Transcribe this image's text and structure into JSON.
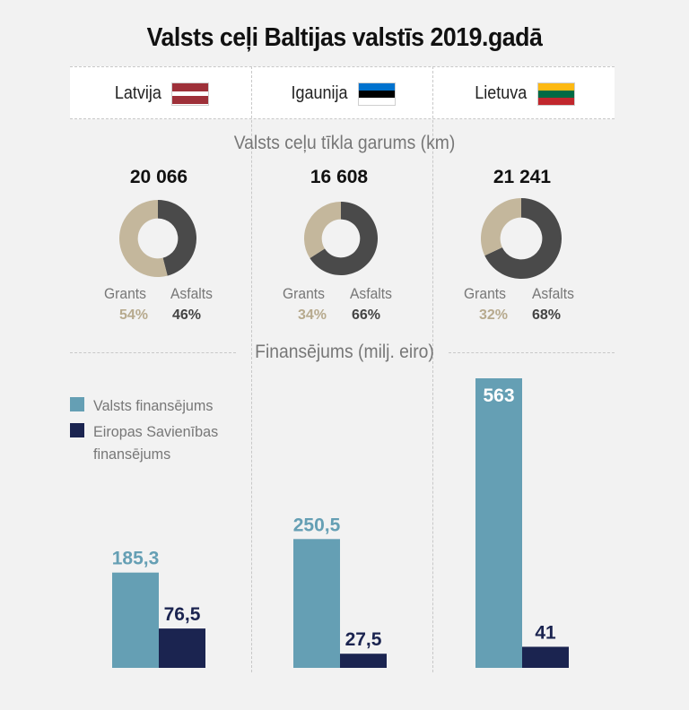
{
  "title": "Valsts ceļi Baltijas valstīs 2019.gadā",
  "countries": [
    {
      "name": "Latvija",
      "flag_colors": [
        "#9e3039",
        "#ffffff",
        "#9e3039"
      ],
      "flag_ratio": [
        2,
        1,
        2
      ]
    },
    {
      "name": "Igaunija",
      "flag_colors": [
        "#0072ce",
        "#000000",
        "#ffffff"
      ],
      "flag_ratio": [
        1,
        1,
        1
      ]
    },
    {
      "name": "Lietuva",
      "flag_colors": [
        "#fdb913",
        "#006a44",
        "#c1272d"
      ],
      "flag_ratio": [
        1,
        1,
        1
      ]
    }
  ],
  "section_length_title": "Valsts ceļu tīkla garums (km)",
  "section_funding_title": "Finansējums (milj. eiro)",
  "colors": {
    "grants": "#c4b79c",
    "asfalts": "#4a4a4a",
    "valsts": "#659fb4",
    "es": "#1b2450",
    "grants_text": "#b7aa8e",
    "asfalts_text": "#444444"
  },
  "chart_data": [
    {
      "type": "pie",
      "title": "Valsts ceļu tīkla garums (km)",
      "groups": [
        {
          "country": "Latvija",
          "total_label": "20 066",
          "slices": [
            {
              "label": "Grants",
              "value": 54,
              "value_label": "54%"
            },
            {
              "label": "Asfalts",
              "value": 46,
              "value_label": "46%"
            }
          ]
        },
        {
          "country": "Igaunija",
          "total_label": "16 608",
          "slices": [
            {
              "label": "Grants",
              "value": 34,
              "value_label": "34%"
            },
            {
              "label": "Asfalts",
              "value": 66,
              "value_label": "66%"
            }
          ]
        },
        {
          "country": "Lietuva",
          "total_label": "21 241",
          "slices": [
            {
              "label": "Grants",
              "value": 32,
              "value_label": "32%"
            },
            {
              "label": "Asfalts",
              "value": 68,
              "value_label": "68%"
            }
          ]
        }
      ]
    },
    {
      "type": "bar",
      "title": "Finansējums (milj. eiro)",
      "categories": [
        "Latvija",
        "Igaunija",
        "Lietuva"
      ],
      "series": [
        {
          "name": "Valsts finansējums",
          "values": [
            185.3,
            250.5,
            563
          ],
          "labels": [
            "185,3",
            "250,5",
            "563"
          ]
        },
        {
          "name": "Eiropas Savienības finansējums",
          "values": [
            76.5,
            27.5,
            41
          ],
          "labels": [
            "76,5",
            "27,5",
            "41"
          ]
        }
      ],
      "legend": "top-left"
    }
  ]
}
